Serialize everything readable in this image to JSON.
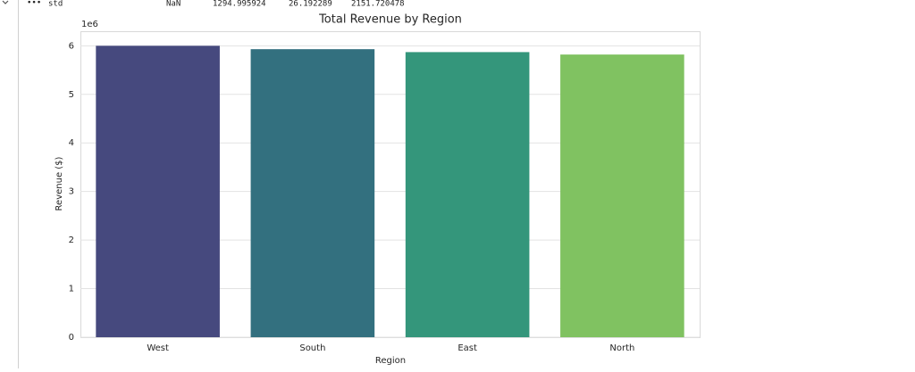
{
  "output_row": {
    "label": "std",
    "cells": [
      "NaN",
      "1294.995924",
      "26.192289",
      "2151.720478"
    ]
  },
  "chart_data": {
    "type": "bar",
    "title": "Total Revenue by Region",
    "x_label": "Region",
    "y_label": "Revenue ($)",
    "y_offset_label": "1e6",
    "categories": [
      "West",
      "South",
      "East",
      "North"
    ],
    "values": [
      6.0,
      5.93,
      5.87,
      5.82
    ],
    "colors": [
      "#46497e",
      "#33707f",
      "#34967b",
      "#80c261"
    ],
    "ylim": [
      0,
      6.3
    ],
    "yticks": [
      0,
      1,
      2,
      3,
      4,
      5,
      6
    ],
    "grid": true
  }
}
